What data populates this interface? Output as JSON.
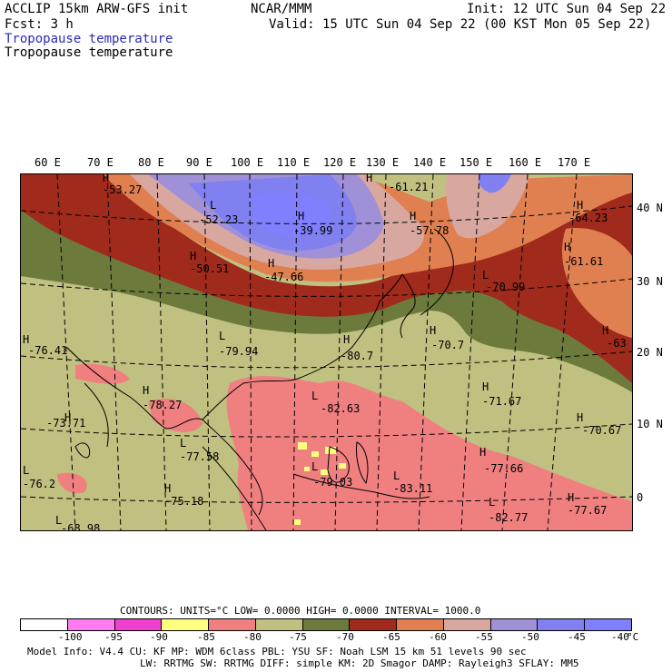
{
  "header": {
    "model": "ACCLIP 15km ARW-GFS init",
    "org": "NCAR/MMM",
    "init": "Init: 12 UTC Sun 04 Sep 22",
    "fcst": "Fcst:    3 h",
    "valid": "Valid: 15 UTC Sun 04 Sep 22 (00 KST Mon 05 Sep 22)",
    "field_color": "Tropopause temperature",
    "field_black": "Tropopause temperature"
  },
  "axes": {
    "lon_labels": [
      "60 E",
      "70 E",
      "80 E",
      "90 E",
      "100 E",
      "110 E",
      "120 E",
      "130 E",
      "140 E",
      "150 E",
      "160 E",
      "170 E"
    ],
    "lat_labels": [
      "40 N",
      "30 N",
      "20 N",
      "10 N",
      "0"
    ]
  },
  "map_labels": {
    "highs_lows": [
      {
        "kind": "H",
        "value": "-53.27"
      },
      {
        "kind": "L",
        "value": "-52.23"
      },
      {
        "kind": "H",
        "value": "-39.99"
      },
      {
        "kind": "H",
        "value": "-61.21"
      },
      {
        "kind": "H",
        "value": "-64.23"
      },
      {
        "kind": "H",
        "value": "-57.78"
      },
      {
        "kind": "H",
        "value": "-50.51"
      },
      {
        "kind": "H",
        "value": "-47.66"
      },
      {
        "kind": "H",
        "value": "-61.61"
      },
      {
        "kind": "L",
        "value": "-70.99"
      },
      {
        "kind": "H",
        "value": "-76.41"
      },
      {
        "kind": "L",
        "value": "-79.94"
      },
      {
        "kind": "H",
        "value": "-80.7"
      },
      {
        "kind": "H",
        "value": "-70.7"
      },
      {
        "kind": "H",
        "value": "-63"
      },
      {
        "kind": "H",
        "value": "-78.27"
      },
      {
        "kind": "L",
        "value": "-82.63"
      },
      {
        "kind": "H",
        "value": "-71.67"
      },
      {
        "kind": "H",
        "value": "-73.71"
      },
      {
        "kind": "H",
        "value": "-70.67"
      },
      {
        "kind": "L",
        "value": "-77.58"
      },
      {
        "kind": "H",
        "value": "-77.66"
      },
      {
        "kind": "L",
        "value": "-76.2"
      },
      {
        "kind": "L",
        "value": "-79.03"
      },
      {
        "kind": "L",
        "value": "-83.11"
      },
      {
        "kind": "H",
        "value": "-75.18"
      },
      {
        "kind": "L",
        "value": "-82.77"
      },
      {
        "kind": "H",
        "value": "-77.67"
      },
      {
        "kind": "L",
        "value": "-68.98"
      }
    ]
  },
  "footer": {
    "contours": "CONTOURS:  UNITS=°C  LOW=  0.0000      HIGH=  0.0000      INTERVAL=   1000.0",
    "colorbar_ticks": [
      "-100",
      "-95",
      "-90",
      "-85",
      "-80",
      "-75",
      "-70",
      "-65",
      "-60",
      "-55",
      "-50",
      "-45",
      "-40",
      "°C"
    ],
    "colorbar_colors": [
      "#ffffff",
      "#ff7cf0",
      "#f040d0",
      "#ffff80",
      "#f08080",
      "#c0c080",
      "#6c7b3c",
      "#a02a1c",
      "#e08050",
      "#d8a8a0",
      "#a090d8",
      "#8080f0",
      "#8080ff"
    ],
    "info_line1": "Model Info: V4.4      CU: KF       MP: WDM 6class  PBL: YSU      SF: Noah LSM     15 km    51 levels   90 sec",
    "info_line2": "LW: RRTMG    SW: RRTMG  DIFF: simple KM: 2D Smagor DAMP: Rayleigh3  SFLAY: MM5"
  }
}
